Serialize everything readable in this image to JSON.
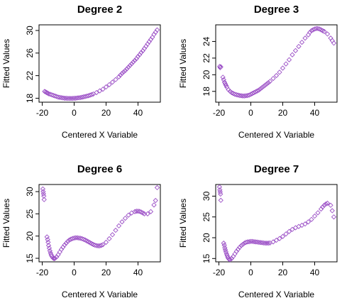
{
  "marker_color": "#9b4fc6",
  "chart_data": [
    {
      "type": "scatter",
      "title": "Degree 2",
      "xlabel": "Centered X Variable",
      "ylabel": "Fitted Values",
      "xlim": [
        -22,
        54
      ],
      "ylim": [
        17.3,
        31.0
      ],
      "xticks": [
        -20,
        0,
        20,
        40
      ],
      "yticks": [
        18,
        22,
        26,
        30
      ],
      "grid": false,
      "legend": "none",
      "points": [
        [
          -18.5,
          19.2
        ],
        [
          -17.8,
          19.1
        ],
        [
          -17.2,
          19.0
        ],
        [
          -16.6,
          18.9
        ],
        [
          -16,
          18.8
        ],
        [
          -15,
          18.7
        ],
        [
          -14,
          18.6
        ],
        [
          -13,
          18.5
        ],
        [
          -12,
          18.4
        ],
        [
          -11,
          18.3
        ],
        [
          -10,
          18.2
        ],
        [
          -9,
          18.15
        ],
        [
          -8,
          18.1
        ],
        [
          -7,
          18.05
        ],
        [
          -6,
          18.0
        ],
        [
          -5,
          18.0
        ],
        [
          -4,
          17.98
        ],
        [
          -3,
          17.97
        ],
        [
          -2,
          17.97
        ],
        [
          -1,
          17.98
        ],
        [
          0,
          18.0
        ],
        [
          1,
          18.0
        ],
        [
          2,
          18.05
        ],
        [
          3,
          18.08
        ],
        [
          4,
          18.12
        ],
        [
          5,
          18.18
        ],
        [
          6,
          18.25
        ],
        [
          7,
          18.3
        ],
        [
          8,
          18.38
        ],
        [
          9,
          18.45
        ],
        [
          10,
          18.55
        ],
        [
          11,
          18.65
        ],
        [
          12,
          18.75
        ],
        [
          14,
          19.0
        ],
        [
          16,
          19.3
        ],
        [
          18,
          19.6
        ],
        [
          20,
          20.0
        ],
        [
          22,
          20.4
        ],
        [
          24,
          20.85
        ],
        [
          26,
          21.3
        ],
        [
          28,
          21.8
        ],
        [
          29,
          22.1
        ],
        [
          30,
          22.4
        ],
        [
          31,
          22.65
        ],
        [
          32,
          22.9
        ],
        [
          33,
          23.2
        ],
        [
          34,
          23.5
        ],
        [
          35,
          23.8
        ],
        [
          36,
          24.1
        ],
        [
          37,
          24.4
        ],
        [
          38,
          24.7
        ],
        [
          39,
          25.0
        ],
        [
          40,
          25.4
        ],
        [
          41,
          25.7
        ],
        [
          42,
          26.1
        ],
        [
          43,
          26.4
        ],
        [
          44,
          26.8
        ],
        [
          45,
          27.2
        ],
        [
          46,
          27.6
        ],
        [
          47,
          28.0
        ],
        [
          48,
          28.4
        ],
        [
          49,
          28.8
        ],
        [
          50,
          29.3
        ],
        [
          51,
          29.7
        ],
        [
          52,
          30.1
        ]
      ]
    },
    {
      "type": "scatter",
      "title": "Degree 3",
      "xlabel": "Centered X Variable",
      "ylabel": "Fitted Values",
      "xlim": [
        -22,
        54
      ],
      "ylim": [
        16.7,
        26.0
      ],
      "xticks": [
        -20,
        0,
        20,
        40
      ],
      "yticks": [
        18,
        20,
        22,
        24
      ],
      "grid": false,
      "legend": "none",
      "points": [
        [
          -19.5,
          21.0
        ],
        [
          -19.2,
          20.85
        ],
        [
          -18.8,
          20.95
        ],
        [
          -17.5,
          19.7
        ],
        [
          -17,
          19.4
        ],
        [
          -16.5,
          19.1
        ],
        [
          -16,
          18.9
        ],
        [
          -15.5,
          18.7
        ],
        [
          -15,
          18.5
        ],
        [
          -14,
          18.2
        ],
        [
          -13,
          18.0
        ],
        [
          -12,
          17.85
        ],
        [
          -11,
          17.75
        ],
        [
          -10,
          17.65
        ],
        [
          -9,
          17.6
        ],
        [
          -8,
          17.55
        ],
        [
          -7,
          17.5
        ],
        [
          -6,
          17.48
        ],
        [
          -5,
          17.45
        ],
        [
          -4,
          17.45
        ],
        [
          -3,
          17.48
        ],
        [
          -2,
          17.5
        ],
        [
          -1,
          17.55
        ],
        [
          0,
          17.65
        ],
        [
          1,
          17.75
        ],
        [
          2,
          17.85
        ],
        [
          3,
          17.95
        ],
        [
          4,
          18.05
        ],
        [
          5,
          18.15
        ],
        [
          6,
          18.3
        ],
        [
          7,
          18.45
        ],
        [
          8,
          18.6
        ],
        [
          9,
          18.75
        ],
        [
          10,
          18.9
        ],
        [
          11,
          19.05
        ],
        [
          12,
          19.2
        ],
        [
          14,
          19.55
        ],
        [
          16,
          19.9
        ],
        [
          18,
          20.3
        ],
        [
          20,
          20.8
        ],
        [
          22,
          21.3
        ],
        [
          24,
          21.8
        ],
        [
          26,
          22.4
        ],
        [
          28,
          22.9
        ],
        [
          30,
          23.4
        ],
        [
          32,
          23.9
        ],
        [
          34,
          24.4
        ],
        [
          36,
          24.8
        ],
        [
          37,
          25.1
        ],
        [
          38,
          25.3
        ],
        [
          39,
          25.4
        ],
        [
          40,
          25.5
        ],
        [
          41,
          25.55
        ],
        [
          42,
          25.55
        ],
        [
          43,
          25.5
        ],
        [
          44,
          25.4
        ],
        [
          45,
          25.3
        ],
        [
          46,
          25.2
        ],
        [
          48,
          24.9
        ],
        [
          50,
          24.4
        ],
        [
          51,
          24.1
        ],
        [
          52,
          23.8
        ]
      ]
    },
    {
      "type": "scatter",
      "title": "Degree 6",
      "xlabel": "Centered X Variable",
      "ylabel": "Fitted Values",
      "xlim": [
        -22,
        54
      ],
      "ylim": [
        14.2,
        31.6
      ],
      "xticks": [
        -20,
        0,
        20,
        40
      ],
      "yticks": [
        15,
        20,
        25,
        30
      ],
      "grid": false,
      "legend": "none",
      "points": [
        [
          -19.6,
          30.6
        ],
        [
          -19.4,
          30.0
        ],
        [
          -19.2,
          29.5
        ],
        [
          -19,
          29.0
        ],
        [
          -18.8,
          28.2
        ],
        [
          -17,
          19.8
        ],
        [
          -16.6,
          19.2
        ],
        [
          -16.3,
          18.6
        ],
        [
          -16,
          17.9
        ],
        [
          -15.6,
          17.3
        ],
        [
          -15.2,
          16.7
        ],
        [
          -14.8,
          16.2
        ],
        [
          -14.4,
          15.8
        ],
        [
          -14,
          15.5
        ],
        [
          -13.5,
          15.2
        ],
        [
          -13,
          15.0
        ],
        [
          -12.5,
          14.95
        ],
        [
          -12,
          15.0
        ],
        [
          -11,
          15.3
        ],
        [
          -10,
          15.8
        ],
        [
          -9,
          16.4
        ],
        [
          -8,
          17.0
        ],
        [
          -7,
          17.5
        ],
        [
          -6,
          18.0
        ],
        [
          -5,
          18.4
        ],
        [
          -4,
          18.8
        ],
        [
          -3,
          19.1
        ],
        [
          -2,
          19.3
        ],
        [
          -1,
          19.45
        ],
        [
          0,
          19.55
        ],
        [
          1,
          19.6
        ],
        [
          2,
          19.6
        ],
        [
          3,
          19.55
        ],
        [
          4,
          19.5
        ],
        [
          5,
          19.4
        ],
        [
          6,
          19.25
        ],
        [
          7,
          19.1
        ],
        [
          8,
          18.9
        ],
        [
          9,
          18.7
        ],
        [
          10,
          18.5
        ],
        [
          11,
          18.3
        ],
        [
          12,
          18.1
        ],
        [
          13,
          17.95
        ],
        [
          14,
          17.85
        ],
        [
          15,
          17.8
        ],
        [
          16,
          17.8
        ],
        [
          17,
          17.9
        ],
        [
          18,
          18.05
        ],
        [
          20,
          18.6
        ],
        [
          22,
          19.4
        ],
        [
          24,
          20.3
        ],
        [
          26,
          21.3
        ],
        [
          28,
          22.3
        ],
        [
          30,
          23.2
        ],
        [
          32,
          24.0
        ],
        [
          34,
          24.7
        ],
        [
          36,
          25.2
        ],
        [
          38,
          25.5
        ],
        [
          39,
          25.6
        ],
        [
          40,
          25.6
        ],
        [
          41,
          25.55
        ],
        [
          42,
          25.4
        ],
        [
          43,
          25.2
        ],
        [
          44,
          25.0
        ],
        [
          46,
          25.0
        ],
        [
          48,
          25.5
        ],
        [
          50,
          27.0
        ],
        [
          51,
          28.0
        ],
        [
          52,
          30.9
        ]
      ]
    },
    {
      "type": "scatter",
      "title": "Degree 7",
      "xlabel": "Centered X Variable",
      "ylabel": "Fitted Values",
      "xlim": [
        -22,
        54
      ],
      "ylim": [
        14.2,
        32.8
      ],
      "xticks": [
        -20,
        0,
        20,
        40
      ],
      "yticks": [
        15,
        20,
        25,
        30
      ],
      "grid": false,
      "legend": "none",
      "points": [
        [
          -19.6,
          32.2
        ],
        [
          -19.4,
          31.5
        ],
        [
          -19.2,
          31.0
        ],
        [
          -19,
          30.5
        ],
        [
          -18.8,
          29.0
        ],
        [
          -17,
          18.7
        ],
        [
          -16.6,
          18.2
        ],
        [
          -16.3,
          17.6
        ],
        [
          -16,
          17.1
        ],
        [
          -15.6,
          16.6
        ],
        [
          -15.2,
          16.1
        ],
        [
          -14.8,
          15.7
        ],
        [
          -14.4,
          15.3
        ],
        [
          -14,
          15.0
        ],
        [
          -13.5,
          14.8
        ],
        [
          -13,
          14.75
        ],
        [
          -12,
          15.0
        ],
        [
          -11,
          15.5
        ],
        [
          -10,
          16.1
        ],
        [
          -9,
          16.7
        ],
        [
          -8,
          17.2
        ],
        [
          -7,
          17.7
        ],
        [
          -6,
          18.1
        ],
        [
          -5,
          18.4
        ],
        [
          -4,
          18.7
        ],
        [
          -3,
          18.9
        ],
        [
          -2,
          19.0
        ],
        [
          -1,
          19.05
        ],
        [
          0,
          19.1
        ],
        [
          1,
          19.1
        ],
        [
          2,
          19.05
        ],
        [
          3,
          19.0
        ],
        [
          4,
          18.95
        ],
        [
          5,
          18.9
        ],
        [
          6,
          18.85
        ],
        [
          7,
          18.8
        ],
        [
          8,
          18.75
        ],
        [
          9,
          18.7
        ],
        [
          10,
          18.7
        ],
        [
          11,
          18.7
        ],
        [
          12,
          18.75
        ],
        [
          14,
          19.0
        ],
        [
          16,
          19.4
        ],
        [
          18,
          19.8
        ],
        [
          20,
          20.3
        ],
        [
          22,
          20.9
        ],
        [
          24,
          21.5
        ],
        [
          26,
          22.0
        ],
        [
          28,
          22.4
        ],
        [
          30,
          22.7
        ],
        [
          32,
          23.0
        ],
        [
          34,
          23.3
        ],
        [
          36,
          23.8
        ],
        [
          38,
          24.4
        ],
        [
          40,
          25.2
        ],
        [
          42,
          26.0
        ],
        [
          44,
          26.9
        ],
        [
          45,
          27.4
        ],
        [
          46,
          27.8
        ],
        [
          47,
          28.1
        ],
        [
          48,
          28.3
        ],
        [
          50,
          27.8
        ],
        [
          51,
          26.5
        ],
        [
          52,
          25.0
        ]
      ]
    }
  ]
}
